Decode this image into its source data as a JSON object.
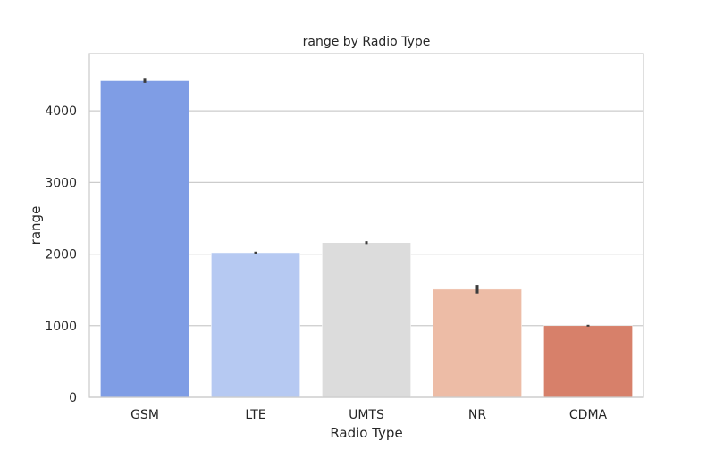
{
  "chart_data": {
    "type": "bar",
    "title": "range by Radio Type",
    "xlabel": "Radio Type",
    "ylabel": "range",
    "categories": [
      "GSM",
      "LTE",
      "UMTS",
      "NR",
      "CDMA"
    ],
    "values": [
      4420,
      2020,
      2160,
      1510,
      1000
    ],
    "error_bars": [
      {
        "low": 4390,
        "high": 4460
      },
      {
        "low": 2005,
        "high": 2035
      },
      {
        "low": 2140,
        "high": 2180
      },
      {
        "low": 1450,
        "high": 1570
      },
      {
        "low": 1000,
        "high": 1000
      }
    ],
    "colors": [
      "#7f9de5",
      "#b6c9f2",
      "#dcdcdc",
      "#edbca6",
      "#d7806a"
    ],
    "ylim": [
      0,
      4800
    ],
    "yticks": [
      0,
      1000,
      2000,
      3000,
      4000
    ],
    "grid": true,
    "legend": "none"
  }
}
